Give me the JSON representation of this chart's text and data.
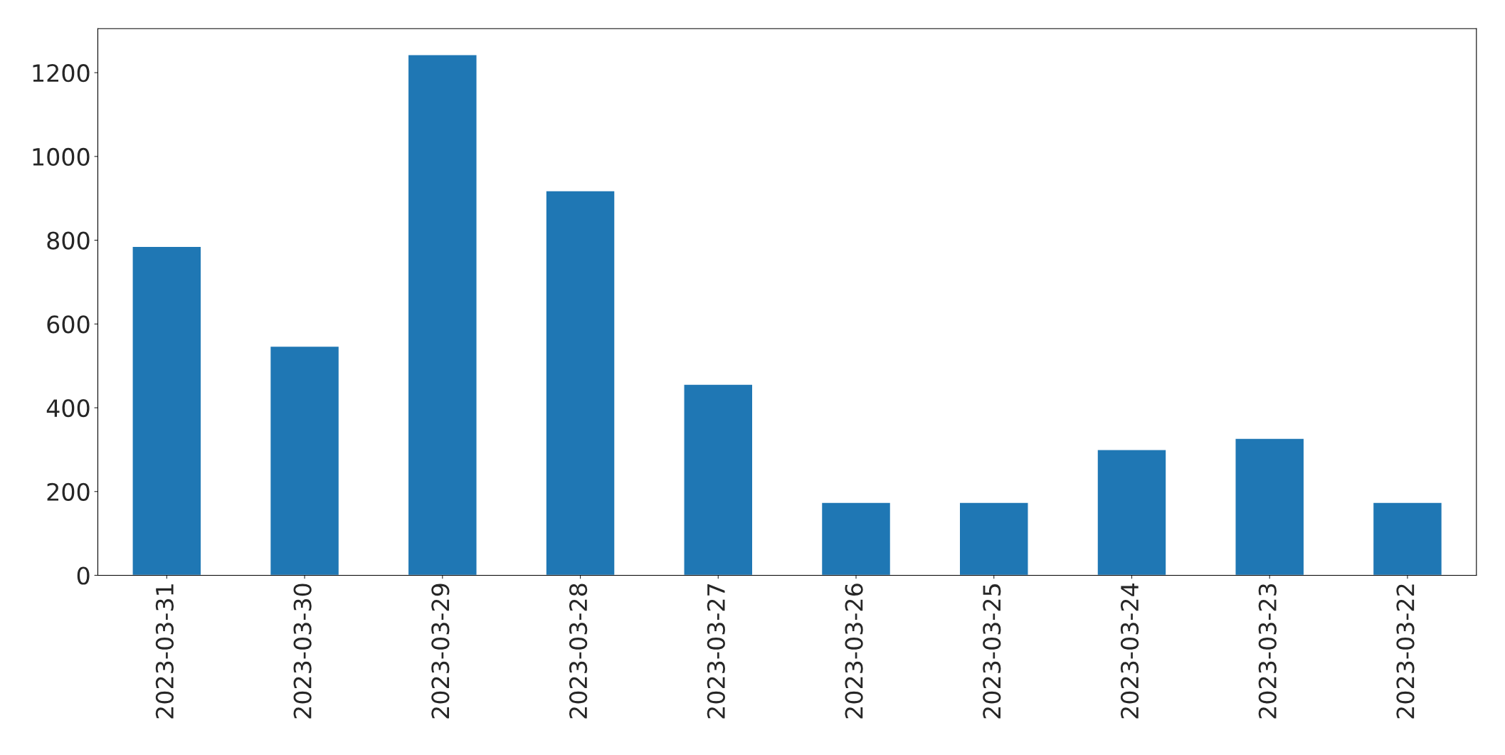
{
  "chart_data": {
    "type": "bar",
    "categories": [
      "2023-03-31",
      "2023-03-30",
      "2023-03-29",
      "2023-03-28",
      "2023-03-27",
      "2023-03-26",
      "2023-03-25",
      "2023-03-24",
      "2023-03-23",
      "2023-03-22"
    ],
    "values": [
      785,
      547,
      1243,
      918,
      456,
      174,
      174,
      300,
      327,
      174
    ],
    "color": "#1f77b4",
    "ylim": [
      0,
      1305
    ],
    "yticks": [
      0,
      200,
      400,
      600,
      800,
      1000,
      1200
    ],
    "grid": false
  }
}
